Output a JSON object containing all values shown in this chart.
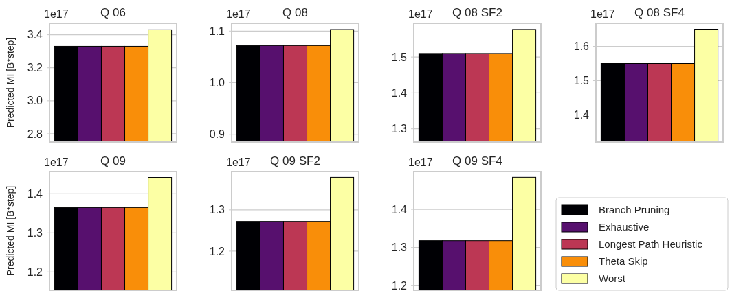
{
  "chart_data": [
    {
      "type": "bar",
      "title": "Q 06",
      "ylabel": "Predicted MI [B*step]",
      "annotations": [
        "1e17"
      ],
      "categories": [
        null
      ],
      "ylim": [
        2.75,
        3.469
      ],
      "yticks": [
        {
          "value": 2.8,
          "label": "2.8"
        },
        {
          "value": 3,
          "label": "3.0"
        },
        {
          "value": 3.2,
          "label": "3.2"
        },
        {
          "value": 3.4,
          "label": "3.4"
        }
      ],
      "grid": "y",
      "legend": false,
      "series": [
        {
          "color": "#000004",
          "values": [
            3.33
          ]
        },
        {
          "color": "#57106e",
          "values": [
            3.33
          ]
        },
        {
          "color": "#bc3754",
          "values": [
            3.33
          ]
        },
        {
          "color": "#f98e09",
          "values": [
            3.33
          ]
        },
        {
          "color": "#fcffa4",
          "values": [
            3.43
          ]
        }
      ]
    },
    {
      "type": "bar",
      "title": "Q 08",
      "annotations": [
        "1e17"
      ],
      "categories": [
        null
      ],
      "ylim": [
        0.885,
        1.115
      ],
      "yticks": [
        0.9,
        {
          "value": 1,
          "label": "1.0"
        },
        1.1
      ],
      "grid": "y",
      "legend": false,
      "series": [
        {
          "color": "#000004",
          "values": [
            1.072
          ]
        },
        {
          "color": "#57106e",
          "values": [
            1.072
          ]
        },
        {
          "color": "#bc3754",
          "values": [
            1.072
          ]
        },
        {
          "color": "#f98e09",
          "values": [
            1.072
          ]
        },
        {
          "color": "#fcffa4",
          "values": [
            1.103
          ]
        }
      ]
    },
    {
      "type": "bar",
      "title": "Q 08 SF2",
      "annotations": [
        "1e17"
      ],
      "categories": [
        null
      ],
      "ylim": [
        1.263,
        1.594
      ],
      "yticks": [
        1.3,
        1.4,
        1.5
      ],
      "grid": "y",
      "legend": false,
      "series": [
        {
          "color": "#000004",
          "values": [
            1.51
          ]
        },
        {
          "color": "#57106e",
          "values": [
            1.51
          ]
        },
        {
          "color": "#bc3754",
          "values": [
            1.51
          ]
        },
        {
          "color": "#f98e09",
          "values": [
            1.51
          ]
        },
        {
          "color": "#fcffa4",
          "values": [
            1.577
          ]
        }
      ]
    },
    {
      "type": "bar",
      "title": "Q 08 SF4",
      "annotations": [
        "1e17"
      ],
      "categories": [
        null
      ],
      "ylim": [
        1.321,
        1.667
      ],
      "yticks": [
        1.4,
        1.5,
        1.6
      ],
      "grid": "y",
      "legend": false,
      "series": [
        {
          "color": "#000004",
          "values": [
            1.55
          ]
        },
        {
          "color": "#57106e",
          "values": [
            1.55
          ]
        },
        {
          "color": "#bc3754",
          "values": [
            1.55
          ]
        },
        {
          "color": "#f98e09",
          "values": [
            1.55
          ]
        },
        {
          "color": "#fcffa4",
          "values": [
            1.65
          ]
        }
      ]
    },
    {
      "type": "bar",
      "title": "Q 09",
      "ylabel": "Predicted MI [B*step]",
      "annotations": [
        "1e17"
      ],
      "categories": [
        null
      ],
      "ylim": [
        1.153,
        1.457
      ],
      "yticks": [
        1.2,
        1.3,
        1.4
      ],
      "grid": "y",
      "legend": false,
      "series": [
        {
          "color": "#000004",
          "values": [
            1.365
          ]
        },
        {
          "color": "#57106e",
          "values": [
            1.365
          ]
        },
        {
          "color": "#bc3754",
          "values": [
            1.365
          ]
        },
        {
          "color": "#f98e09",
          "values": [
            1.365
          ]
        },
        {
          "color": "#fcffa4",
          "values": [
            1.442
          ]
        }
      ]
    },
    {
      "type": "bar",
      "title": "Q 09 SF2",
      "annotations": [
        "1e17"
      ],
      "categories": [
        null
      ],
      "ylim": [
        1.105,
        1.393
      ],
      "yticks": [
        1.2,
        1.3
      ],
      "grid": "y",
      "legend": false,
      "series": [
        {
          "color": "#000004",
          "values": [
            1.272
          ]
        },
        {
          "color": "#57106e",
          "values": [
            1.272
          ]
        },
        {
          "color": "#bc3754",
          "values": [
            1.272
          ]
        },
        {
          "color": "#f98e09",
          "values": [
            1.272
          ]
        },
        {
          "color": "#fcffa4",
          "values": [
            1.379
          ]
        }
      ]
    },
    {
      "type": "bar",
      "title": "Q 09 SF4",
      "annotations": [
        "1e17"
      ],
      "categories": [
        null
      ],
      "ylim": [
        1.188,
        1.499
      ],
      "yticks": [
        1.2,
        1.3,
        1.4
      ],
      "grid": "y",
      "legend": "right",
      "series": [
        {
          "name": "Branch Pruning",
          "color": "#000004",
          "values": [
            1.318
          ]
        },
        {
          "name": "Exhaustive",
          "color": "#57106e",
          "values": [
            1.318
          ]
        },
        {
          "name": "Longest Path Heuristic",
          "color": "#bc3754",
          "values": [
            1.318
          ]
        },
        {
          "name": "Theta Skip",
          "color": "#f98e09",
          "values": [
            1.318
          ]
        },
        {
          "name": "Worst",
          "color": "#fcffa4",
          "values": [
            1.484
          ]
        }
      ]
    }
  ]
}
